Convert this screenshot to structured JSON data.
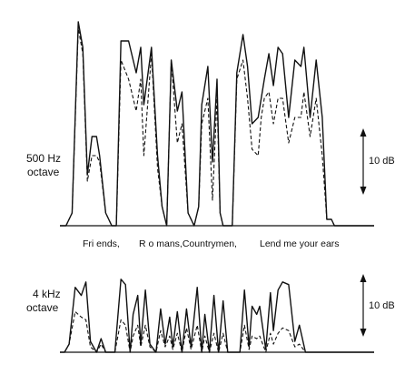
{
  "chart_data": [
    {
      "type": "line",
      "band_label_line1": "500 Hz",
      "band_label_line2": "octave",
      "scale_label": "10 dB",
      "transcript": [
        "Fri ends,",
        "R o mans,Countrymen,",
        "Lend me your ears"
      ],
      "x": [
        0,
        4,
        8,
        12,
        15,
        18,
        21,
        24,
        26,
        30,
        34,
        37,
        40,
        45,
        50,
        53,
        55,
        60,
        64,
        67,
        70,
        73,
        77,
        80,
        84,
        88,
        91,
        93,
        97,
        100,
        103,
        105,
        107,
        110,
        113,
        116,
        120,
        123,
        126,
        130,
        132,
        134,
        137,
        140,
        143,
        146,
        150,
        154,
        158,
        160,
        164,
        168,
        172,
        175,
        178,
        180,
        183,
        186,
        189,
        193,
        196,
        200,
        206
      ],
      "series": [
        {
          "line_style": "solid",
          "values": [
            0,
            0,
            2,
            32,
            28,
            8,
            14,
            14,
            11,
            2,
            0,
            0,
            29,
            29,
            24,
            28,
            19,
            28,
            11,
            3,
            0,
            26,
            18,
            21,
            2,
            0,
            3,
            19,
            25,
            10,
            23,
            2,
            0,
            0,
            0,
            24,
            30,
            25,
            16,
            17,
            20,
            23,
            27,
            22,
            28,
            27,
            17,
            26,
            25,
            28,
            17,
            26,
            17,
            1,
            1,
            0,
            0,
            0,
            0,
            0,
            0,
            0,
            0
          ],
          "color": "#111111"
        },
        {
          "line_style": "dashed",
          "values": [
            0,
            0,
            2,
            31,
            27,
            7,
            11,
            11,
            10,
            2,
            0,
            0,
            26,
            23,
            18,
            23,
            11,
            27,
            9,
            3,
            0,
            26,
            13,
            16,
            2,
            0,
            3,
            16,
            20,
            4,
            20,
            2,
            0,
            0,
            0,
            23,
            26,
            20,
            12,
            11,
            17,
            20,
            21,
            16,
            20,
            20,
            13,
            17,
            17,
            21,
            14,
            20,
            11,
            1,
            1,
            0,
            0,
            0,
            0,
            0,
            0,
            0,
            0
          ],
          "color": "#111111"
        }
      ]
    },
    {
      "type": "line",
      "band_label_line1": "4 kHz",
      "band_label_line2": "octave",
      "scale_label": "10 dB",
      "x": [
        0,
        3,
        6,
        10,
        14,
        17,
        20,
        24,
        27,
        30,
        33,
        36,
        40,
        43,
        46,
        48,
        51,
        53,
        56,
        59,
        63,
        66,
        69,
        72,
        74,
        77,
        80,
        83,
        86,
        90,
        93,
        95,
        98,
        101,
        104,
        107,
        110,
        114,
        118,
        121,
        124,
        126,
        129,
        131,
        135,
        138,
        140,
        143,
        146,
        150,
        154,
        157,
        161,
        164,
        168,
        172,
        175,
        178,
        182,
        186,
        190,
        193,
        196,
        199,
        202,
        206
      ],
      "series": [
        {
          "line_style": "solid",
          "values": [
            0,
            0,
            3,
            24,
            21,
            26,
            4,
            0,
            5,
            0,
            0,
            0,
            27,
            25,
            0,
            14,
            21,
            3,
            23,
            3,
            0,
            16,
            3,
            13,
            2,
            15,
            0,
            16,
            2,
            24,
            0,
            14,
            0,
            21,
            0,
            19,
            0,
            0,
            0,
            23,
            2,
            17,
            14,
            17,
            1,
            22,
            8,
            23,
            26,
            25,
            4,
            10,
            0,
            0,
            0,
            0,
            0,
            0,
            0,
            0,
            0,
            0,
            0,
            0,
            0,
            0
          ],
          "color": "#111111"
        },
        {
          "line_style": "dashed",
          "values": [
            0,
            0,
            3,
            15,
            13,
            12,
            2,
            0,
            3,
            0,
            0,
            0,
            12,
            10,
            0,
            6,
            10,
            2,
            10,
            2,
            0,
            8,
            2,
            6,
            1,
            7,
            0,
            9,
            1,
            10,
            0,
            6,
            0,
            7,
            0,
            7,
            0,
            0,
            0,
            10,
            1,
            6,
            5,
            6,
            0,
            7,
            3,
            7,
            9,
            8,
            2,
            3,
            0,
            0,
            0,
            0,
            0,
            0,
            0,
            0,
            0,
            0,
            0,
            0,
            0,
            0
          ],
          "color": "#111111"
        }
      ]
    }
  ]
}
